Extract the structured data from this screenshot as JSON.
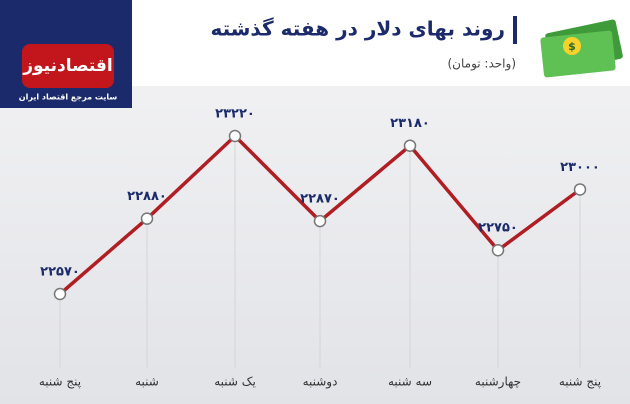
{
  "chart_data": {
    "type": "line",
    "title": "روند بهای دلار در هفته گذشته",
    "subtitle": "(واحد: تومان)",
    "brand": "اقتصادنیوز",
    "brand_tagline": "سایت مرجع اقتصاد ایران",
    "categories": [
      "پنج شنبه",
      "شنبه",
      "یک شنبه",
      "دوشنبه",
      "سه شنبه",
      "چهارشنبه",
      "پنج شنبه"
    ],
    "series": [
      {
        "color": "#b01e23",
        "values": [
          22570,
          22880,
          23220,
          22870,
          23180,
          22750,
          23000
        ],
        "value_labels": [
          "۲۲۵۷۰",
          "۲۲۸۸۰",
          "۲۳۲۲۰",
          "۲۲۸۷۰",
          "۲۳۱۸۰",
          "۲۲۷۵۰",
          "۲۳۰۰۰"
        ]
      }
    ]
  }
}
